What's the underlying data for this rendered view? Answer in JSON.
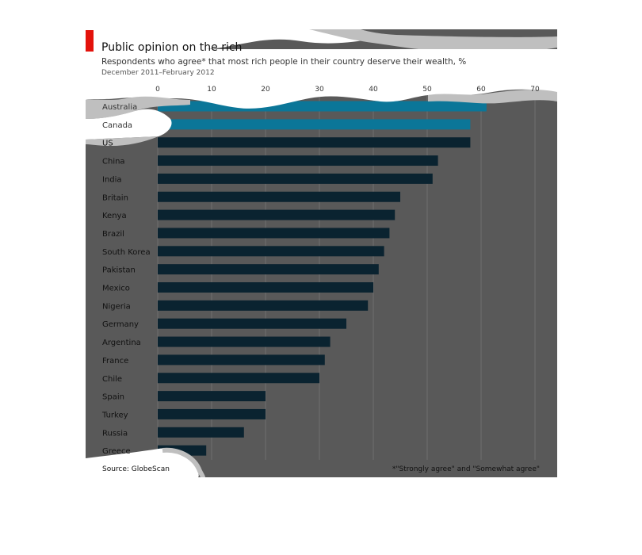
{
  "header": {
    "title": "Public opinion on the rich",
    "subtitle": "Respondents who agree* that most rich people in their country deserve their wealth, %",
    "date_range": "December 2011–February 2012",
    "accent_color": "#e3120b"
  },
  "footer": {
    "source": "Source: GlobeScan",
    "footnote": "*\"Strongly agree\" and \"Somewhat agree\""
  },
  "colors": {
    "panel": "#595959",
    "bar": "#0a2330",
    "bar_highlight": "#0b7698",
    "grid": "#6f6f6f",
    "blob": "#bfbfbf"
  },
  "chart_data": {
    "type": "bar",
    "orientation": "horizontal",
    "title": "Public opinion on the rich",
    "subtitle": "Respondents who agree* that most rich people in their country deserve their wealth, %",
    "categories": [
      "Australia",
      "Canada",
      "US",
      "China",
      "India",
      "Britain",
      "Kenya",
      "Brazil",
      "South Korea",
      "Pakistan",
      "Mexico",
      "Nigeria",
      "Germany",
      "Argentina",
      "France",
      "Chile",
      "Spain",
      "Turkey",
      "Russia",
      "Greece"
    ],
    "values": [
      61,
      58,
      58,
      52,
      51,
      45,
      44,
      43,
      42,
      41,
      40,
      39,
      35,
      32,
      31,
      30,
      20,
      20,
      16,
      9
    ],
    "xlim": [
      0,
      70
    ],
    "xticks": [
      0,
      10,
      20,
      30,
      40,
      50,
      60,
      70
    ],
    "xlabel": "",
    "ylabel": "",
    "grid": true
  }
}
